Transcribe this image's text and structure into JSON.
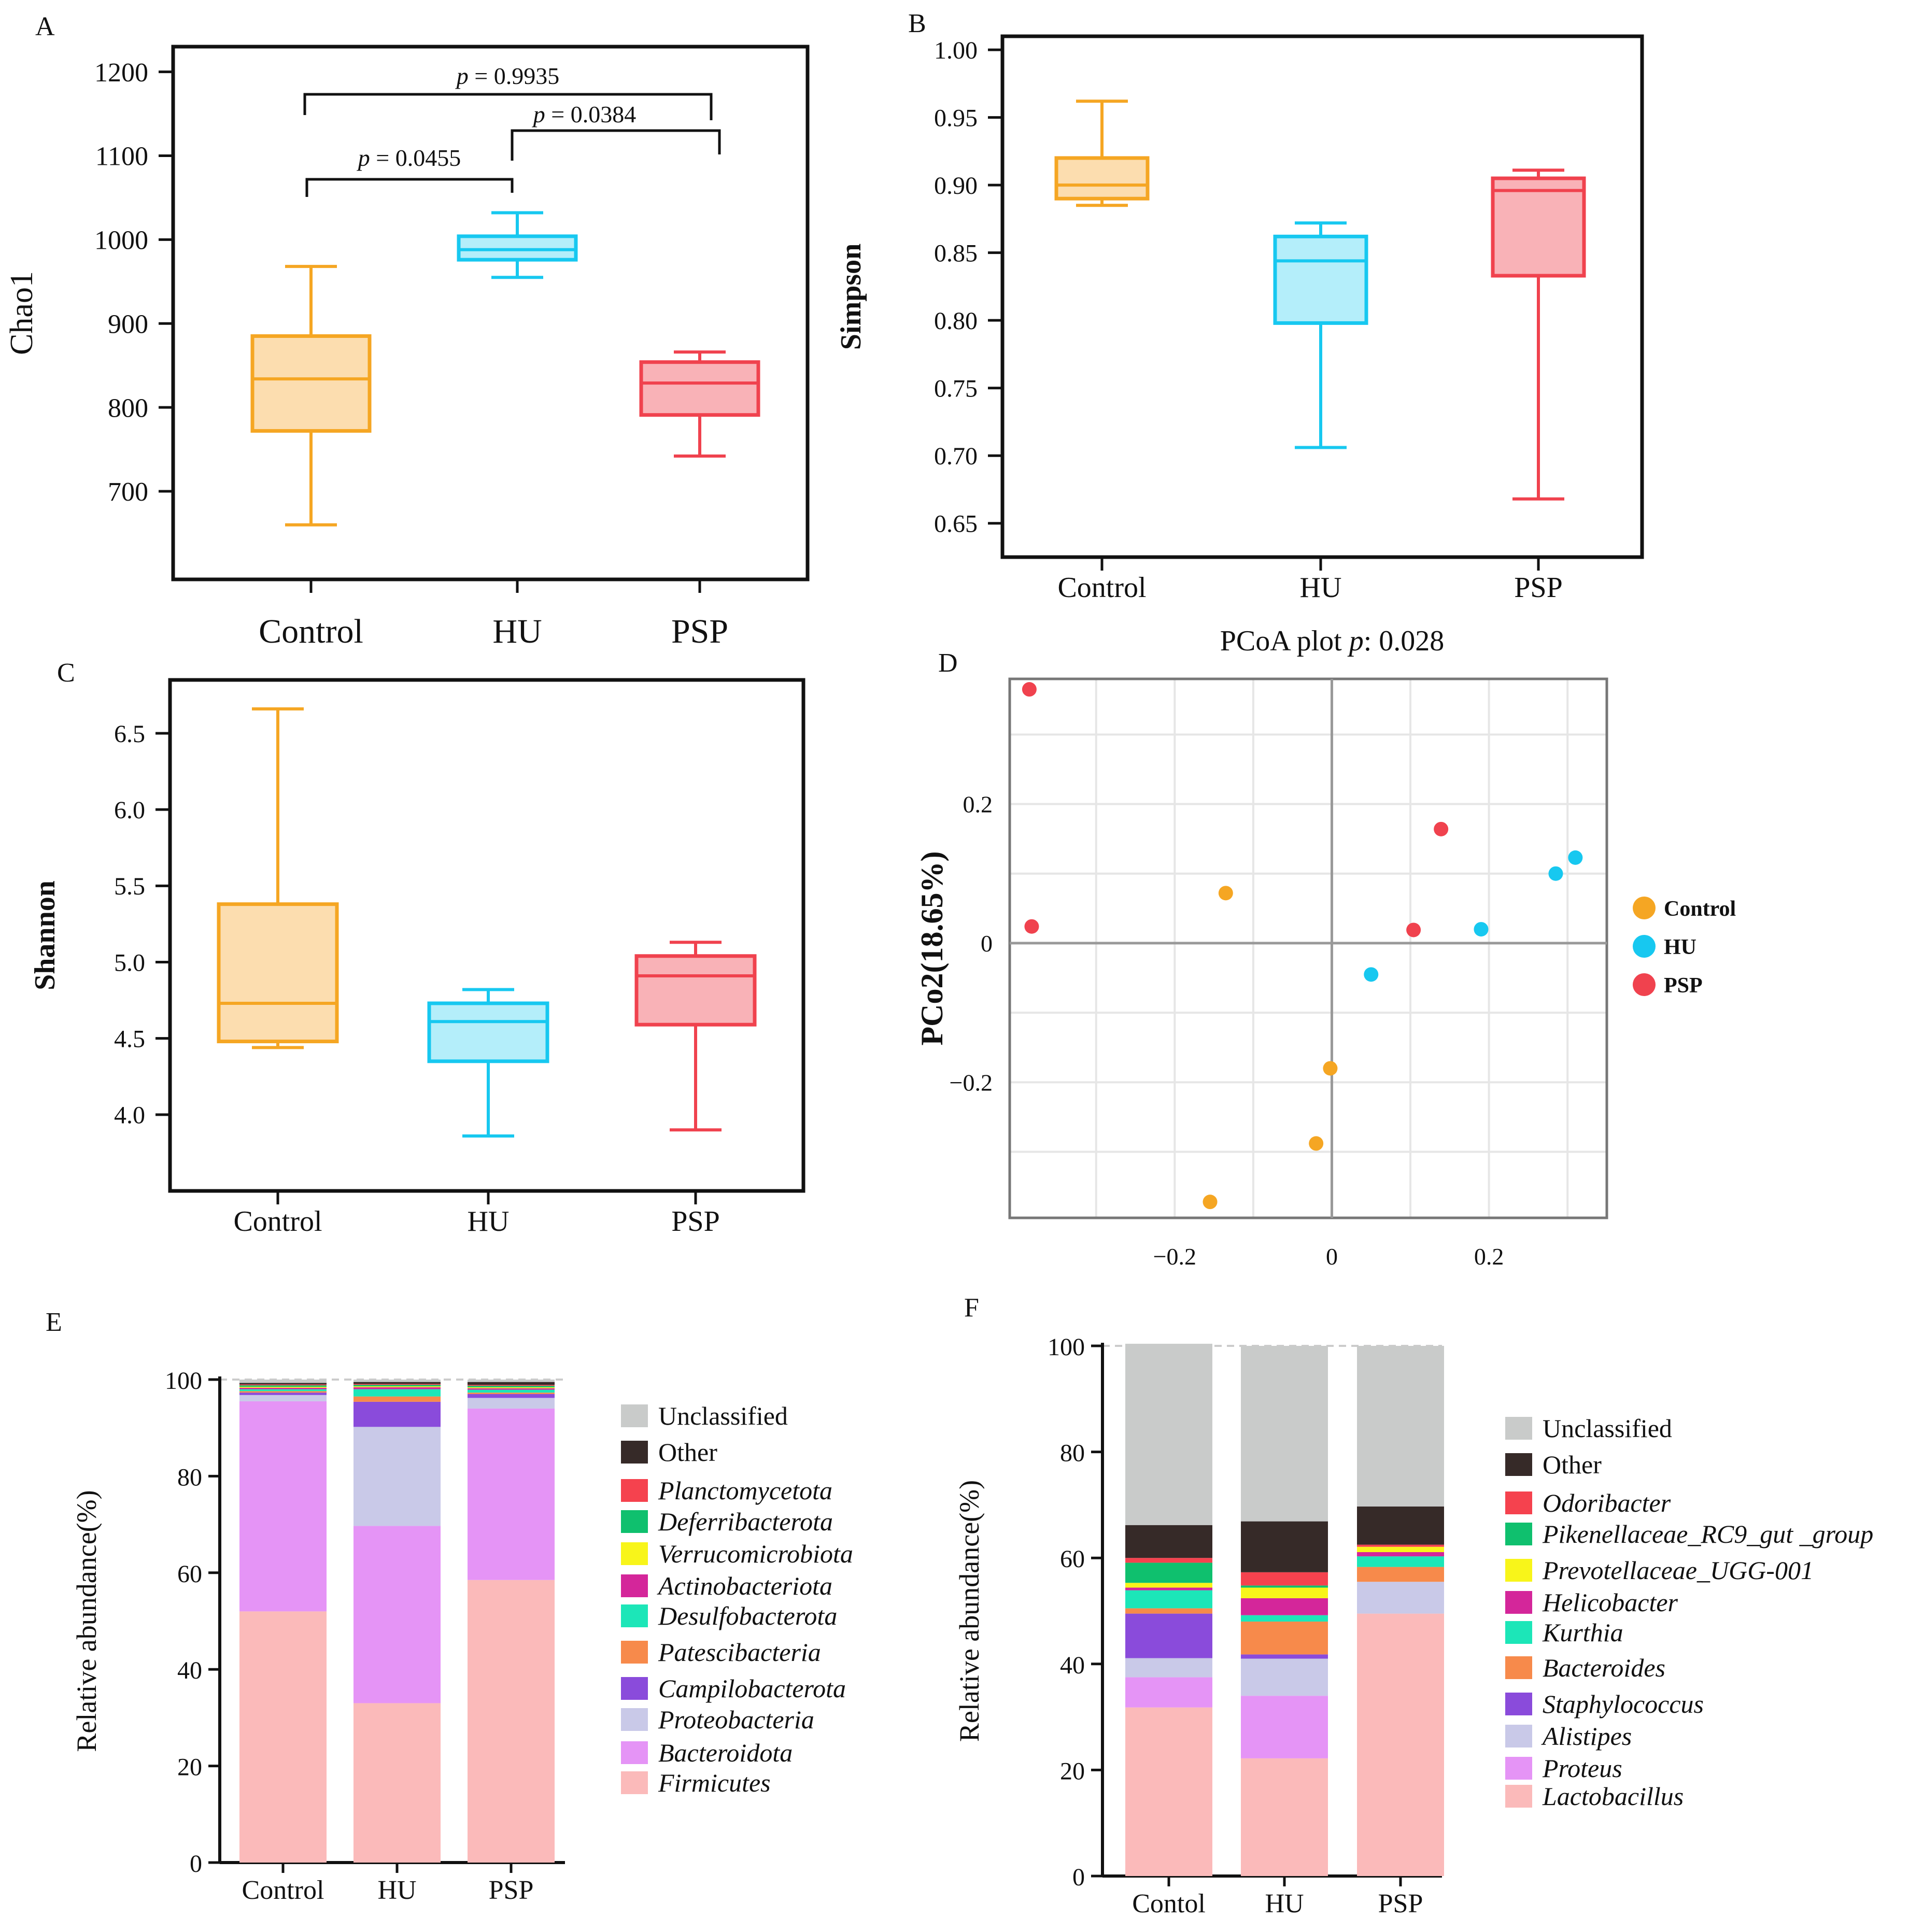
{
  "chart_data": [
    {
      "panel": "A",
      "type": "box",
      "ylabel": "Chao1",
      "categories": [
        "Control",
        "HU",
        "PSP"
      ],
      "yticks": [
        700,
        800,
        900,
        1000,
        1100,
        1200
      ],
      "ylim": [
        595,
        1230
      ],
      "boxes": [
        {
          "min": 660,
          "q1": 772,
          "median": 834,
          "q3": 885,
          "max": 968
        },
        {
          "min": 955,
          "q1": 976,
          "median": 988,
          "q3": 1004,
          "max": 1032
        },
        {
          "min": 742,
          "q1": 791,
          "median": 829,
          "q3": 854,
          "max": 866
        }
      ],
      "annotations": [
        "p = 0.9935",
        "p = 0.0384",
        "p = 0.0455"
      ],
      "significance": [
        {
          "from": 0,
          "to": 2,
          "label_index": 0
        },
        {
          "from": 1,
          "to": 2,
          "label_index": 1
        },
        {
          "from": 0,
          "to": 1,
          "label_index": 2
        }
      ]
    },
    {
      "panel": "B",
      "type": "box",
      "ylabel": "Simpson",
      "categories": [
        "Control",
        "HU",
        "PSP"
      ],
      "yticks": [
        "0.65",
        "0.70",
        "0.75",
        "0.80",
        "0.85",
        "0.90",
        "0.95",
        "1.00"
      ],
      "ylim": [
        0.625,
        1.01
      ],
      "boxes": [
        {
          "min": 0.885,
          "q1": 0.89,
          "median": 0.9,
          "q3": 0.92,
          "max": 0.962
        },
        {
          "min": 0.706,
          "q1": 0.798,
          "median": 0.844,
          "q3": 0.862,
          "max": 0.872
        },
        {
          "min": 0.668,
          "q1": 0.833,
          "median": 0.896,
          "q3": 0.905,
          "max": 0.911
        }
      ]
    },
    {
      "panel": "C",
      "type": "box",
      "ylabel": "Shannon",
      "categories": [
        "Control",
        "HU",
        "PSP"
      ],
      "yticks": [
        "4.0",
        "4.5",
        "5.0",
        "5.5",
        "6.0",
        "6.5"
      ],
      "ylim": [
        3.5,
        6.85
      ],
      "boxes": [
        {
          "min": 4.44,
          "q1": 4.48,
          "median": 4.73,
          "q3": 5.38,
          "max": 6.66
        },
        {
          "min": 3.86,
          "q1": 4.35,
          "median": 4.61,
          "q3": 4.73,
          "max": 4.82
        },
        {
          "min": 3.9,
          "q1": 4.59,
          "median": 4.91,
          "q3": 5.04,
          "max": 5.13
        }
      ]
    },
    {
      "panel": "D",
      "type": "scatter",
      "title": "PCoA plot p:  0.028",
      "title_parts": [
        "PCoA plot ",
        "p",
        ":  0.028"
      ],
      "ylabel": "PCo2(18.65%)",
      "xticks": [
        "−0.2",
        "0",
        "0.2"
      ],
      "yticks": [
        "−0.2",
        "0",
        "0.2"
      ],
      "xlim": [
        -0.41,
        0.35
      ],
      "ylim": [
        -0.395,
        0.38
      ],
      "series": [
        {
          "name": "Control",
          "points": [
            [
              -0.135,
              0.072
            ],
            [
              -0.002,
              -0.18
            ],
            [
              -0.02,
              -0.288
            ],
            [
              -0.155,
              -0.372
            ]
          ]
        },
        {
          "name": "HU",
          "points": [
            [
              0.05,
              -0.045
            ],
            [
              0.19,
              0.02
            ],
            [
              0.285,
              0.1
            ],
            [
              0.31,
              0.123
            ]
          ]
        },
        {
          "name": "PSP",
          "points": [
            [
              -0.385,
              0.365
            ],
            [
              -0.382,
              0.024
            ],
            [
              0.104,
              0.019
            ],
            [
              0.139,
              0.164
            ]
          ]
        }
      ]
    },
    {
      "panel": "E",
      "type": "stacked-bar",
      "ylabel": "Relative abundance(%)",
      "categories": [
        "Control",
        "HU",
        "PSP"
      ],
      "yticks": [
        0,
        20,
        40,
        60,
        80,
        100
      ],
      "ylim": [
        0,
        100
      ],
      "series": [
        {
          "name": "Firmicutes",
          "values": [
            52,
            33,
            58.5
          ]
        },
        {
          "name": "Bacteroidota",
          "values": [
            43.5,
            36.7,
            35.5
          ]
        },
        {
          "name": "Proteobacteria",
          "values": [
            1.3,
            20.5,
            2.2
          ]
        },
        {
          "name": "Campilobacterota",
          "values": [
            0.5,
            5.2,
            0.8
          ]
        },
        {
          "name": "Patescibacteria",
          "values": [
            0.3,
            1.1,
            0.3
          ]
        },
        {
          "name": "Desulfobacterota",
          "values": [
            0.4,
            1.5,
            0.6
          ]
        },
        {
          "name": "Actinobacteriota",
          "values": [
            0.3,
            0.4,
            0.3
          ]
        },
        {
          "name": "Verrucomicrobiota",
          "values": [
            0.2,
            0.2,
            0.2
          ]
        },
        {
          "name": "Deferribacterota",
          "values": [
            0.3,
            0.3,
            0.3
          ]
        },
        {
          "name": "Planctomycetota",
          "values": [
            0.2,
            0.2,
            0.2
          ]
        },
        {
          "name": "Other",
          "values": [
            0.3,
            0.4,
            0.6
          ]
        },
        {
          "name": "Unclassified",
          "values": [
            0.7,
            0.5,
            0.5
          ]
        }
      ]
    },
    {
      "panel": "F",
      "type": "stacked-bar",
      "ylabel": "Relative abundance(%)",
      "categories": [
        "Contol",
        "HU",
        "PSP"
      ],
      "yticks": [
        0,
        20,
        40,
        60,
        80,
        100
      ],
      "ylim": [
        0,
        100
      ],
      "series": [
        {
          "name": "Lactobacillus",
          "values": [
            31.8,
            22.2,
            49.5
          ]
        },
        {
          "name": "Proteus",
          "values": [
            5.7,
            11.8,
            0
          ]
        },
        {
          "name": "Alistipes",
          "values": [
            3.6,
            7.0,
            6.0
          ]
        },
        {
          "name": "Staphylococcus",
          "values": [
            8.4,
            0.8,
            0
          ]
        },
        {
          "name": "Bacteroides",
          "values": [
            1.0,
            6.2,
            2.8
          ]
        },
        {
          "name": "Kurthia",
          "values": [
            3.4,
            1.2,
            2.0
          ]
        },
        {
          "name": "Helicobacter",
          "values": [
            0.5,
            3.2,
            0.8
          ]
        },
        {
          "name": "Prevotellaceae_UGG-001",
          "values": [
            0.9,
            2.0,
            1.0
          ]
        },
        {
          "name": "Pikenellaceae_RC9_gut _group",
          "values": [
            3.8,
            0.4,
            0
          ]
        },
        {
          "name": "Odoribacter",
          "values": [
            0.9,
            2.5,
            0.4
          ]
        },
        {
          "name": "Other",
          "values": [
            6.2,
            9.6,
            7.2
          ]
        },
        {
          "name": "Unclassified",
          "values": [
            34.2,
            33.1,
            30.3
          ]
        }
      ]
    }
  ],
  "panel_letters": [
    "A",
    "B",
    "C",
    "D",
    "E",
    "F"
  ],
  "colors": {
    "Control": "#F5A623",
    "Control_fill": "#FCDDAF",
    "HU": "#17C8F0",
    "HU_fill": "#B4EEFA",
    "PSP": "#F0424E",
    "PSP_fill": "#F9B2B7",
    "Unclassified": "#C9CBCA",
    "Other": "#362A28",
    "Planctomycetota": "#F5424E",
    "Deferribacterota": "#0FC06E",
    "Verrucomicrobiota": "#F8F51A",
    "Actinobacteriota": "#D4269A",
    "Desulfobacterota": "#1CE6B8",
    "Patescibacteria": "#F78A4B",
    "Campilobacterota": "#8A4BDB",
    "Proteobacteria": "#C9C9E8",
    "Bacteroidota": "#E594F6",
    "Firmicutes": "#FBBABA",
    "Odoribacter": "#F5424E",
    "Pikenellaceae_RC9_gut _group": "#0FC06E",
    "Prevotellaceae_UGG-001": "#F8F51A",
    "Helicobacter": "#D4269A",
    "Kurthia": "#1CE6B8",
    "Bacteroides": "#F78A4B",
    "Staphylococcus": "#8A4BDB",
    "Alistipes": "#C9C9E8",
    "Proteus": "#E594F6",
    "Lactobacillus": "#FBBABA"
  }
}
